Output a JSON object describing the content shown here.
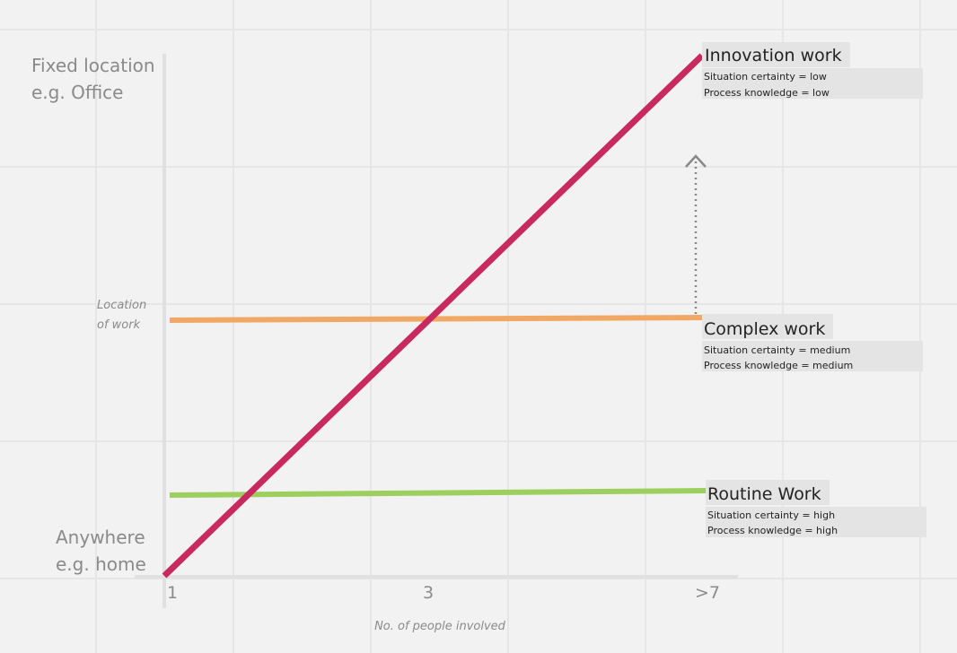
{
  "y_axis": {
    "top_label": [
      "Fixed location",
      "e.g. Office"
    ],
    "bottom_label": [
      "Anywhere",
      "e.g. home"
    ],
    "title": [
      "Location",
      "of work"
    ]
  },
  "x_axis": {
    "ticks": [
      "1",
      "3",
      ">7"
    ],
    "title": "No. of people involved"
  },
  "lines": [
    {
      "label": "Innovation work",
      "details": [
        "Situation certainty = low",
        "Process knowledge = low"
      ]
    },
    {
      "label": "Complex work",
      "details": [
        "Situation certainty = medium",
        "Process knowledge = medium"
      ]
    },
    {
      "label": "Routine Work",
      "details": [
        "Situation certainty = high",
        "Process knowledge = high"
      ]
    }
  ]
}
